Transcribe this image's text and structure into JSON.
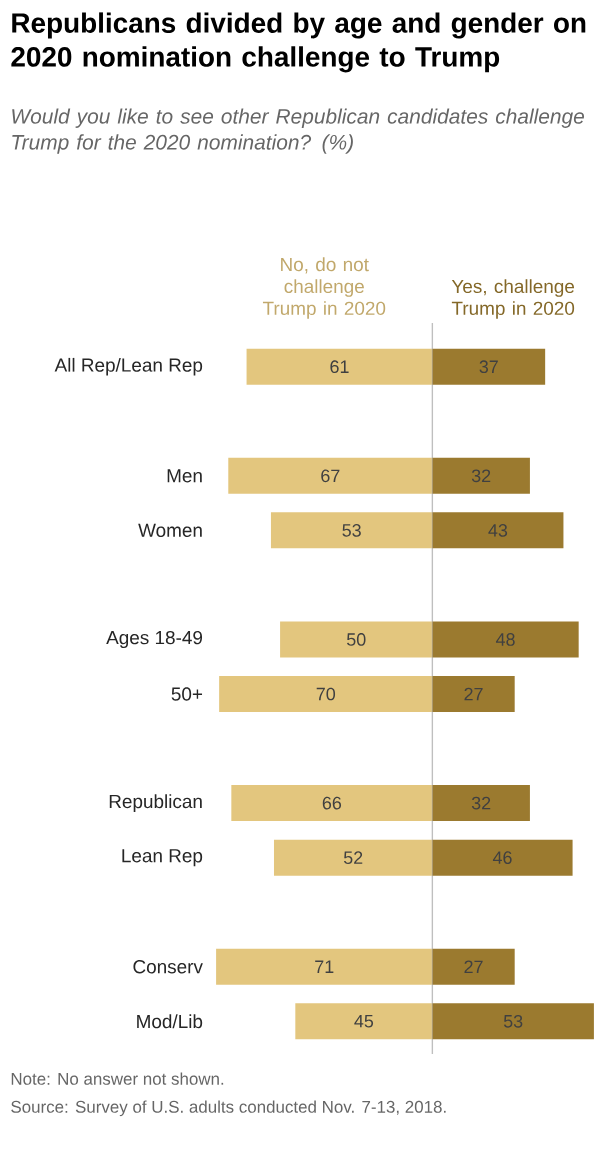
{
  "chart_data": [
    {
      "type": "bar",
      "orientation": "horizontal",
      "data_labels": true,
      "title": "Republicans divided by age and gender on 2020 nomination challenge to Trump",
      "subtitle": "Would you like to see other Republican candidates challenge Trump for the 2020 nomination? (%)",
      "categories": [
        "All Rep/Lean Rep",
        null,
        "Men",
        "Women",
        null,
        "Ages 18-49",
        "50+",
        null,
        "Republican",
        "Lean Rep",
        null,
        "Conserv",
        "Mod/Lib"
      ],
      "xlim": [
        73,
        0
      ],
      "series": [
        {
          "name": "No, do not challenge Trump in 2020",
          "color": "#e3c67e",
          "values": [
            61,
            null,
            67,
            53,
            null,
            50,
            70,
            null,
            66,
            52,
            null,
            71,
            45
          ]
        }
      ],
      "annotations": [
        "Note: No answer not shown.",
        "Source: Survey of U.S. adults conducted Nov. 7-13, 2018."
      ]
    },
    {
      "type": "bar",
      "orientation": "horizontal",
      "data_labels": true,
      "categories": [
        null,
        null,
        null,
        null,
        null,
        null,
        null,
        null,
        null,
        null,
        null,
        null,
        null
      ],
      "xlim": [
        0,
        55
      ],
      "series": [
        {
          "name": "Yes, challenge Trump in 2020",
          "color": "#9b7a2f",
          "values": [
            37,
            null,
            32,
            43,
            null,
            48,
            27,
            null,
            32,
            46,
            null,
            27,
            53
          ]
        }
      ]
    }
  ]
}
